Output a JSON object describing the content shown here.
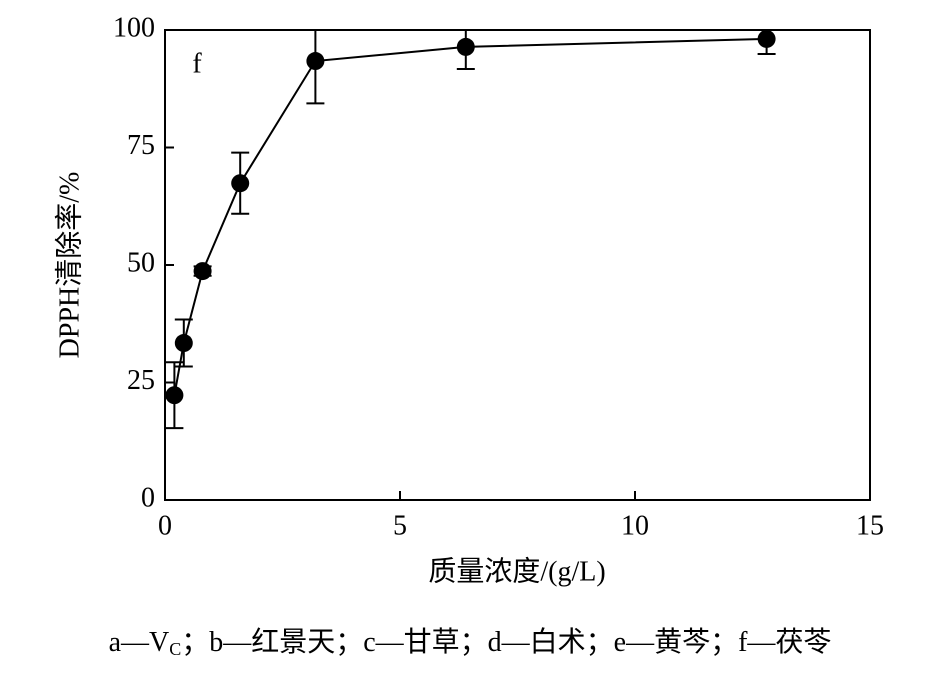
{
  "chart_data": {
    "type": "line",
    "annotation": "f",
    "x_label": "质量浓度/(g/L)",
    "y_label": "DPPH清除率/%",
    "x": [
      0.2,
      0.4,
      0.8,
      1.6,
      3.2,
      6.4,
      12.8
    ],
    "values": [
      22.3,
      33.4,
      48.7,
      67.4,
      93.4,
      96.4,
      98.1
    ],
    "errors": [
      7,
      5,
      1,
      6.5,
      9,
      4.7,
      3.2
    ],
    "color": "#000000",
    "xlim": [
      0,
      15
    ],
    "xticks": [
      0,
      5,
      10,
      15
    ],
    "ylim": [
      0,
      100
    ],
    "yticks": [
      0,
      25,
      50,
      75,
      100
    ],
    "caption": [
      "a—V",
      "C",
      "；b—红景天；c—甘草；d—白术；e—黄芩；f—茯苓"
    ]
  }
}
